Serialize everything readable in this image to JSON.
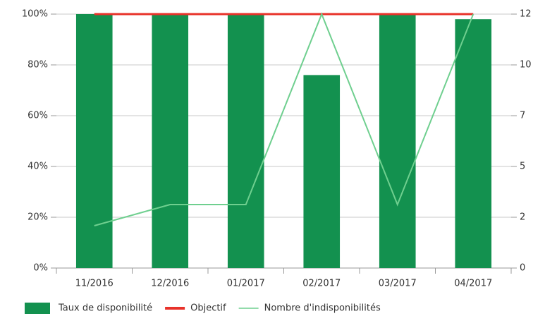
{
  "chart_data": {
    "type": "bar",
    "categories": [
      "11/2016",
      "12/2016",
      "01/2017",
      "02/2017",
      "03/2017",
      "04/2017"
    ],
    "series": [
      {
        "name": "Taux de disponibilité",
        "type": "bar",
        "color": "#13914f",
        "values": [
          100,
          100,
          100,
          76,
          100,
          98
        ]
      },
      {
        "name": "Objectif",
        "type": "line",
        "color": "#e8322a",
        "values": [
          100,
          100,
          100,
          100,
          100,
          100
        ]
      },
      {
        "name": "Nombre d'indisponibilités",
        "type": "line",
        "axis": "y2",
        "color": "#6fcf8f",
        "values": [
          2,
          3,
          3,
          12,
          3,
          12
        ]
      }
    ],
    "ylim": [
      0,
      100
    ],
    "yticks": [
      {
        "value": 0,
        "label": "0%"
      },
      {
        "value": 20,
        "label": "20%"
      },
      {
        "value": 40,
        "label": "40%"
      },
      {
        "value": 60,
        "label": "60%"
      },
      {
        "value": 80,
        "label": "80%"
      },
      {
        "value": 100,
        "label": "100%"
      }
    ],
    "y2lim": [
      0,
      12
    ],
    "y2ticks": [
      0,
      {
        "value": 2.4,
        "label": "2"
      },
      {
        "value": 4.8,
        "label": "5"
      },
      {
        "value": 7.2,
        "label": "7"
      },
      {
        "value": 9.6,
        "label": "10"
      },
      12
    ],
    "grid": true,
    "legend": "bottom"
  }
}
